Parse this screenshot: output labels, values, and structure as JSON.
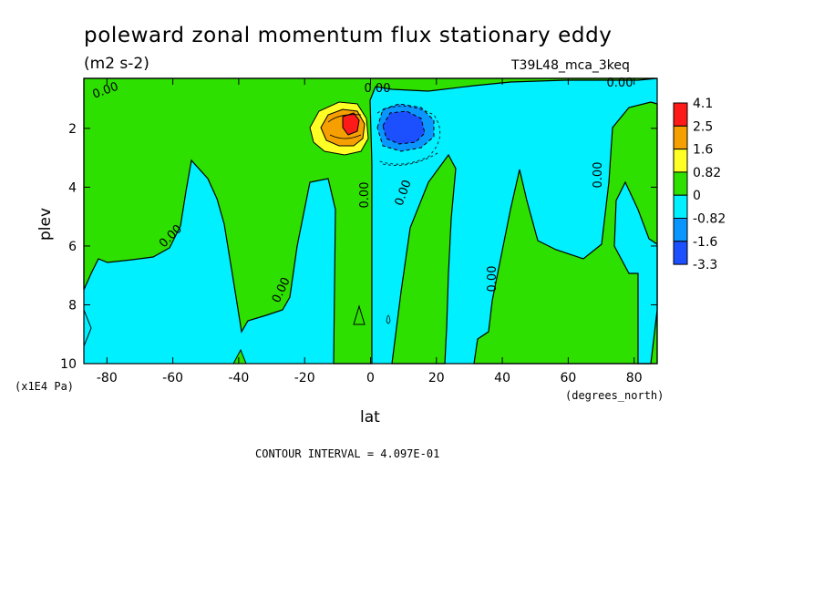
{
  "title": "poleward zonal momentum flux stationary eddy",
  "units": "(m2 s-2)",
  "run_label": "T39L48_mca_3keq",
  "contour_interval_text": "CONTOUR INTERVAL = 4.097E-01",
  "colors": {
    "red": "#ff1a1a",
    "orange": "#f5a000",
    "yellow": "#ffff26",
    "green": "#2ee000",
    "cyan": "#00f0ff",
    "light_blue": "#0a96ff",
    "blue": "#1c50ff"
  },
  "chart_data": {
    "type": "heatmap",
    "title": "poleward zonal momentum flux stationary eddy",
    "units": "(m2 s-2)",
    "xlabel": "lat",
    "xunits": "(degrees_north)",
    "ylabel": "plev",
    "yunits": "(x1E4 Pa)",
    "xlim": [
      -87,
      87
    ],
    "ylim": [
      10,
      0.3
    ],
    "x_ticks": [
      "-80",
      "-60",
      "-40",
      "-20",
      "0",
      "20",
      "40",
      "60",
      "80"
    ],
    "y_ticks": [
      "2",
      "4",
      "6",
      "8",
      "10"
    ],
    "contour_interval": 0.4097,
    "zero_contour_label": "0.00",
    "zero_labels": [
      "0.00",
      "0.00",
      "0.00",
      "0.00",
      "0.00",
      "0.00",
      "0.00",
      "0.00",
      "0.00"
    ],
    "colorbar": {
      "levels": [
        "4.1",
        "2.5",
        "1.6",
        "0.82",
        "0",
        "-0.82",
        "-1.6",
        "-3.3"
      ],
      "colors": [
        "#ff1a1a",
        "#f5a000",
        "#ffff26",
        "#2ee000",
        "#00f0ff",
        "#0a96ff",
        "#1c50ff"
      ]
    },
    "features": [
      {
        "sign": "positive",
        "lat": -6,
        "plev": 1.7,
        "max": 4.1
      },
      {
        "sign": "negative",
        "lat": 9,
        "plev": 1.9,
        "min": -3.3
      }
    ]
  }
}
